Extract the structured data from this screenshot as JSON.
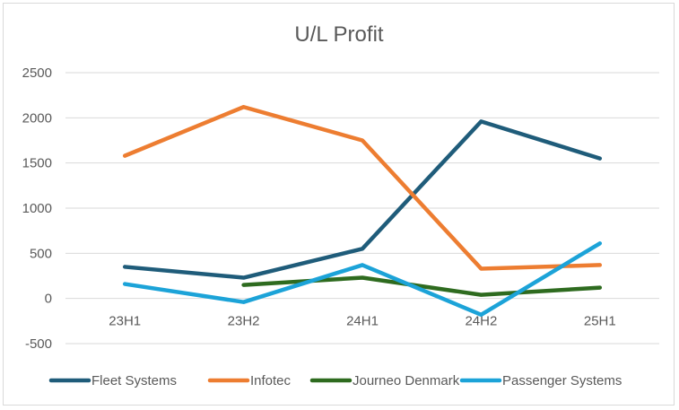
{
  "chart_data": {
    "type": "line",
    "title": "U/L Profit",
    "xlabel": "",
    "ylabel": "",
    "categories": [
      "23H1",
      "23H2",
      "24H1",
      "24H2",
      "25H1"
    ],
    "ylim": [
      -500,
      2500
    ],
    "yticks": [
      2500,
      2000,
      1500,
      1000,
      500,
      0,
      -500
    ],
    "grid": true,
    "legend_position": "bottom",
    "series": [
      {
        "name": "Fleet Systems",
        "color": "#1f5c7a",
        "values": [
          350,
          230,
          550,
          1960,
          1550
        ]
      },
      {
        "name": "Infotec",
        "color": "#ed7d31",
        "values": [
          1580,
          2120,
          1750,
          330,
          370
        ]
      },
      {
        "name": "Journeo Denmark",
        "color": "#2e6b1f",
        "values": [
          null,
          150,
          230,
          40,
          120
        ]
      },
      {
        "name": "Passenger Systems",
        "color": "#1ca3d8",
        "values": [
          160,
          -40,
          370,
          -180,
          610
        ]
      }
    ]
  }
}
